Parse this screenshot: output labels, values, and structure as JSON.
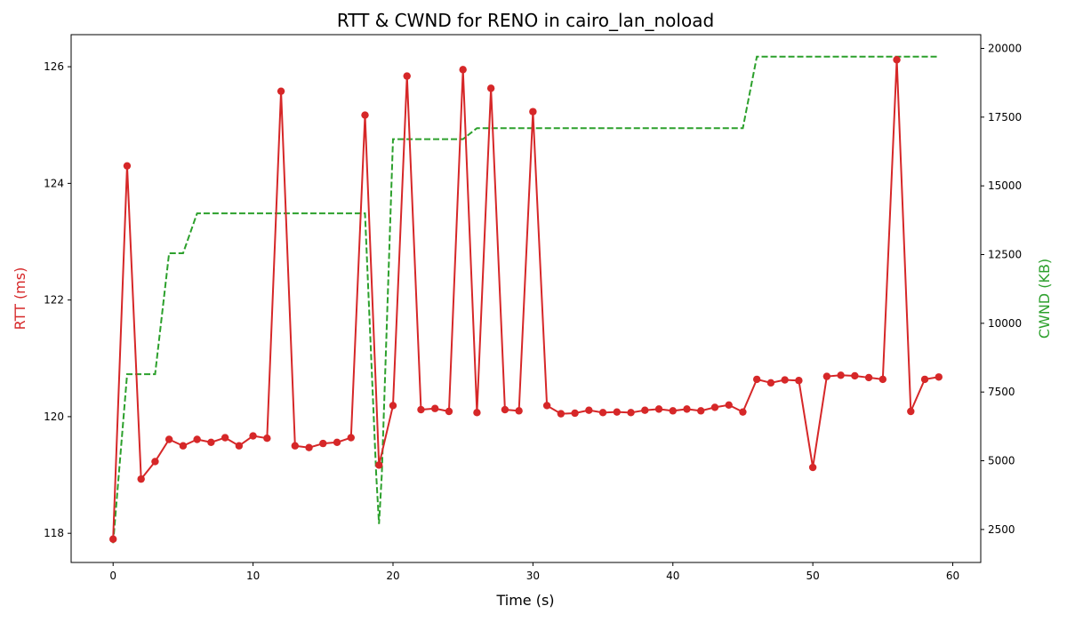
{
  "chart_data": {
    "type": "line",
    "title": "RTT & CWND for RENO in cairo_lan_noload",
    "xlabel": "Time (s)",
    "ylabel_left": "RTT (ms)",
    "ylabel_right": "CWND (KB)",
    "xlim": [
      -3,
      62
    ],
    "ylim_left": [
      117.5,
      126.55
    ],
    "ylim_right": [
      1300,
      20500
    ],
    "x_ticks": [
      0,
      10,
      20,
      30,
      40,
      50,
      60
    ],
    "y_left_ticks": [
      118,
      120,
      122,
      124,
      126
    ],
    "y_right_ticks": [
      2500,
      5000,
      7500,
      10000,
      12500,
      15000,
      17500,
      20000
    ],
    "grid": false,
    "colors": {
      "rtt": "#d62728",
      "cwnd": "#2ca02c"
    },
    "series": [
      {
        "key": "rtt",
        "axis": "left",
        "style": "solid-markers",
        "x": [
          0,
          1,
          2,
          3,
          4,
          5,
          6,
          7,
          8,
          9,
          10,
          11,
          12,
          13,
          14,
          15,
          16,
          17,
          18,
          19,
          20,
          21,
          22,
          23,
          24,
          25,
          26,
          27,
          28,
          29,
          30,
          31,
          32,
          33,
          34,
          35,
          36,
          37,
          38,
          39,
          40,
          41,
          42,
          43,
          44,
          45,
          46,
          47,
          48,
          49,
          50,
          51,
          52,
          53,
          54,
          55,
          56,
          57,
          58,
          59
        ],
        "values": [
          117.9,
          124.3,
          118.93,
          119.23,
          119.61,
          119.5,
          119.61,
          119.56,
          119.64,
          119.5,
          119.67,
          119.63,
          125.58,
          119.5,
          119.47,
          119.54,
          119.56,
          119.64,
          125.17,
          119.17,
          120.19,
          125.84,
          120.12,
          120.14,
          120.09,
          125.95,
          120.07,
          125.63,
          120.12,
          120.1,
          125.23,
          120.19,
          120.05,
          120.06,
          120.11,
          120.07,
          120.08,
          120.07,
          120.11,
          120.13,
          120.1,
          120.13,
          120.1,
          120.16,
          120.2,
          120.08,
          120.64,
          120.58,
          120.63,
          120.62,
          119.13,
          120.69,
          120.71,
          120.7,
          120.67,
          120.64,
          126.12,
          120.09,
          120.64,
          120.68
        ]
      },
      {
        "key": "cwnd",
        "axis": "right",
        "style": "dashed",
        "x": [
          0,
          1,
          2,
          3,
          4,
          5,
          6,
          17,
          18,
          18.8,
          19,
          19.2,
          20,
          25,
          26,
          45,
          46,
          59
        ],
        "values": [
          2000,
          8150,
          8150,
          8150,
          12550,
          12550,
          14000,
          14000,
          14000,
          4500,
          2700,
          4500,
          16700,
          16700,
          17100,
          17100,
          19700,
          19700
        ]
      }
    ]
  }
}
